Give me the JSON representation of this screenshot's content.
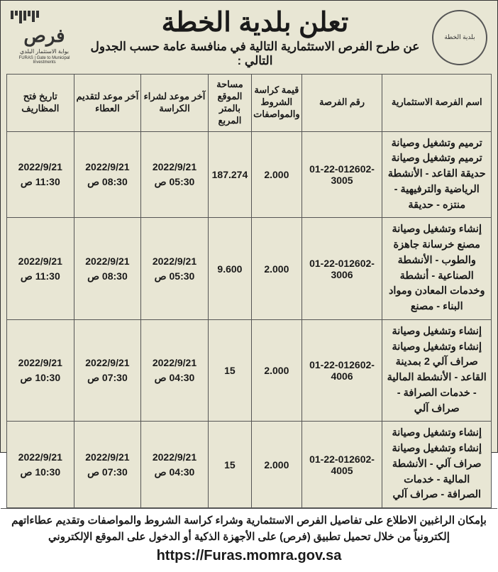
{
  "header": {
    "title": "تعلن بلدية الخطة",
    "subtitle": "عن طرح الفرص الاستثمارية التالية في منافسة عامة حسب الجدول التالي :",
    "seal_text": "بلدية الخطة",
    "furas_logo": "فرص",
    "furas_sub1": "بوابة الاستثمار البلدي",
    "furas_sub2": "FURAS | Gate to Municipal Investments"
  },
  "table": {
    "columns": [
      "اسم الفرصة الاستثمارية",
      "رقم الفرصة",
      "قيمة كراسة الشروط والمواصفات",
      "مساحة الموقع بالمتر المربع",
      "آخر موعد لشراء الكراسة",
      "آخر موعد لتقديم العطاء",
      "تاريخ فتح المظاريف"
    ],
    "rows": [
      {
        "name": "ترميم وتشغيل وصيانة ترميم وتشغيل وصيانة حديقة القاعد - الأنشطة الرياضية والترفيهية - منتزه - حديقة",
        "ref": "01-22-012602-3005",
        "price": "2.000",
        "area": "187.274",
        "d1_date": "2022/9/21",
        "d1_time": "05:30 ص",
        "d2_date": "2022/9/21",
        "d2_time": "08:30 ص",
        "d3_date": "2022/9/21",
        "d3_time": "11:30 ص"
      },
      {
        "name": "إنشاء وتشغيل وصيانة مصنع خرسانة جاهزة والطوب - الأنشطة الصناعية - أنشطة وخدمات المعادن ومواد البناء - مصنع",
        "ref": "01-22-012602-3006",
        "price": "2.000",
        "area": "9.600",
        "d1_date": "2022/9/21",
        "d1_time": "05:30 ص",
        "d2_date": "2022/9/21",
        "d2_time": "08:30 ص",
        "d3_date": "2022/9/21",
        "d3_time": "11:30 ص"
      },
      {
        "name": "إنشاء وتشغيل وصيانة إنشاء وتشغيل وصيانة صراف آلي 2 بمدينة القاعد - الأنشطة المالية - خدمات الصرافة - صراف آلي",
        "ref": "01-22-012602-4006",
        "price": "2.000",
        "area": "15",
        "d1_date": "2022/9/21",
        "d1_time": "04:30 ص",
        "d2_date": "2022/9/21",
        "d2_time": "07:30 ص",
        "d3_date": "2022/9/21",
        "d3_time": "10:30 ص"
      },
      {
        "name": "إنشاء وتشغيل وصيانة إنشاء وتشغيل وصيانة صراف آلي - الأنشطة المالية - خدمات الصرافة - صراف آلي",
        "ref": "01-22-012602-4005",
        "price": "2.000",
        "area": "15",
        "d1_date": "2022/9/21",
        "d1_time": "04:30 ص",
        "d2_date": "2022/9/21",
        "d2_time": "07:30 ص",
        "d3_date": "2022/9/21",
        "d3_time": "10:30 ص"
      }
    ]
  },
  "footer": {
    "text": "بإمكان الراغبين الاطلاع على تفاصيل الفرص الاستثمارية وشراء كراسة الشروط والمواصفات وتقديم عطاءاتهم إلكترونياً من خلال تحميل تطبيق (فرص) على الأجهزة الذكية أو الدخول على الموقع الإلكتروني",
    "url": "https://Furas.momra.gov.sa"
  },
  "style": {
    "background": "#e8e6d4",
    "border": "#555555",
    "text": "#1a1a1a"
  }
}
